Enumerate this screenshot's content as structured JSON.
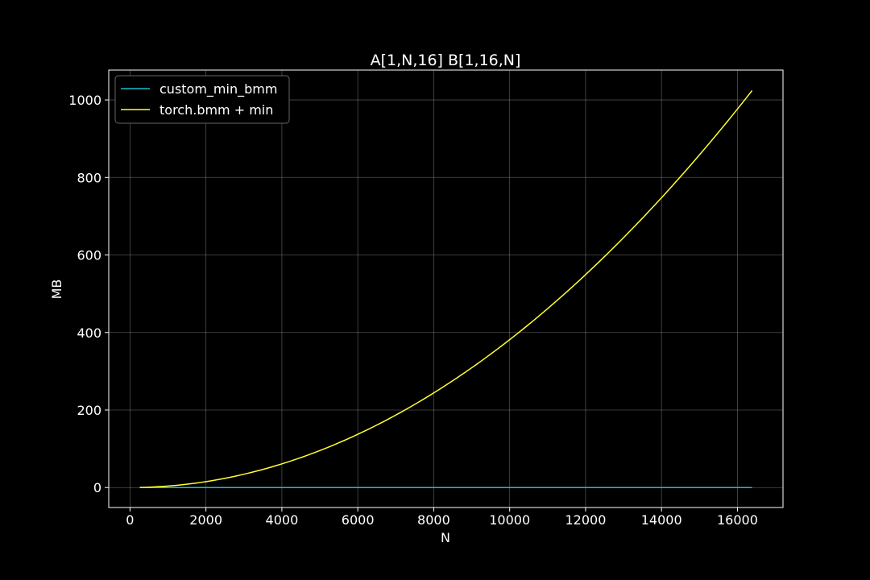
{
  "chart_data": {
    "type": "line",
    "title": "A[1,N,16] B[1,16,N]",
    "xlabel": "N",
    "ylabel": "MB",
    "xlim": [
      -560,
      17200
    ],
    "ylim": [
      -51.5,
      1077
    ],
    "xticks": [
      0,
      2000,
      4000,
      6000,
      8000,
      10000,
      12000,
      14000,
      16000
    ],
    "yticks": [
      0,
      200,
      400,
      600,
      800,
      1000
    ],
    "grid": true,
    "legend": "upper left",
    "series": [
      {
        "name": "custom_min_bmm",
        "color": "#17becf",
        "x": [
          256,
          16384
        ],
        "y": [
          0,
          0
        ]
      },
      {
        "name": "torch.bmm + min",
        "color": "#ffff33",
        "x": [
          256,
          1000,
          2000,
          3000,
          4000,
          5000,
          6000,
          7000,
          8000,
          9000,
          10000,
          11000,
          12000,
          13000,
          14000,
          15000,
          16000,
          16384
        ],
        "y": [
          0.25,
          3.8,
          15.3,
          34.3,
          61,
          95.4,
          137.3,
          186.9,
          244.1,
          308.9,
          381.5,
          461.6,
          549.3,
          644.7,
          747.7,
          858.3,
          976.6,
          1024
        ]
      }
    ]
  }
}
